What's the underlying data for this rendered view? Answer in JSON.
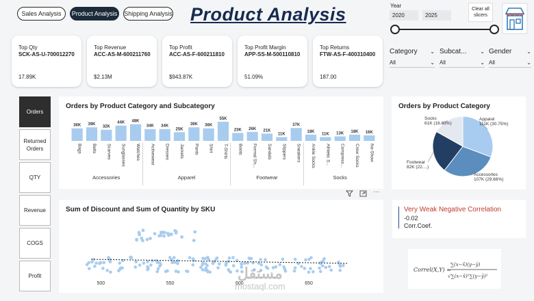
{
  "tabs": [
    {
      "label": "Sales Analysis",
      "active": false
    },
    {
      "label": "Product Analysis",
      "active": true
    },
    {
      "label": "Shipping Analysis",
      "active": false
    }
  ],
  "title": "Product  Analysis",
  "year": {
    "label": "Year",
    "from": "2020",
    "to": "2025"
  },
  "clear_slicers": "Clear all slicers",
  "slicers": [
    {
      "label": "Category",
      "value": "All"
    },
    {
      "label": "Subcat...",
      "value": "All"
    },
    {
      "label": "Gender",
      "value": "All"
    }
  ],
  "kpis": [
    {
      "label": "Top Qty",
      "code": "SCK-AS-U-700012270",
      "value": "17.89K"
    },
    {
      "label": "Top Revenue",
      "code": "ACC-AS-M-600211760",
      "value": "$2.13M"
    },
    {
      "label": "Top Profit",
      "code": "ACC-AS-F-600211810",
      "value": "$943.87K"
    },
    {
      "label": "Top Profit Margin",
      "code": "APP-SS-M-500110810",
      "value": "51.09%"
    },
    {
      "label": "Top Returns",
      "code": "FTW-AS-F-400310400",
      "value": "187.00"
    }
  ],
  "nav": [
    {
      "label": "Orders",
      "active": true
    },
    {
      "label": "Returned Orders",
      "active": false
    },
    {
      "label": "QTY",
      "active": false
    },
    {
      "label": "Revenue",
      "active": false
    },
    {
      "label": "COGS",
      "active": false
    },
    {
      "label": "Profit",
      "active": false
    }
  ],
  "chart_data": [
    {
      "type": "bar",
      "title": "Orders by Product Category and Subcategory",
      "categories": [
        "Bags",
        "Belts",
        "Scarves",
        "Sunglasses",
        "Watches",
        "Activewear",
        "Dresses",
        "Jackets",
        "Pants",
        "Shirt",
        "T-Shirts",
        "Boots",
        "Formal Sh...",
        "Sandals",
        "Slippers",
        "Sneakers",
        "Ankle Socks",
        "Athletic S...",
        "Compress...",
        "Crew Socks",
        "No-Show"
      ],
      "values": [
        36,
        39,
        32,
        44,
        48,
        34,
        34,
        25,
        39,
        36,
        55,
        23,
        26,
        21,
        11,
        37,
        18,
        11,
        13,
        18,
        16
      ],
      "data_labels": [
        "36K",
        "39K",
        "32K",
        "44K",
        "48K",
        "34K",
        "34K",
        "25K",
        "39K",
        "36K",
        "55K",
        "23K",
        "26K",
        "21K",
        "11K",
        "37K",
        "18K",
        "11K",
        "13K",
        "18K",
        "16K"
      ],
      "groups": [
        {
          "name": "Accessories",
          "count": 5
        },
        {
          "name": "Apparel",
          "count": 6
        },
        {
          "name": "Footwear",
          "count": 5
        },
        {
          "name": "Socks",
          "count": 5
        }
      ],
      "color": "#a8ccef"
    },
    {
      "type": "pie",
      "title": "Orders by Product Category",
      "slices": [
        {
          "name": "Apparel",
          "value": 30.75,
          "label": "111K (30.75%)",
          "color": "#a8ccef"
        },
        {
          "name": "Accessories",
          "value": 29.66,
          "label": "107K (29.66%)",
          "color": "#5b8dbe"
        },
        {
          "name": "Footwear",
          "value": 22.76,
          "label": "82K (22....)",
          "color": "#223f63"
        },
        {
          "name": "Socks",
          "value": 16.83,
          "label": "61K (16.83%)",
          "color": "#e4e9ef"
        }
      ]
    },
    {
      "type": "scatter",
      "title": "Sum of Discount and Sum of Quantity by SKU",
      "x_ticks": [
        "500",
        "550",
        "600",
        "650"
      ],
      "xlim": [
        487,
        687
      ],
      "trend": "dotted",
      "color": "#a8ccef"
    }
  ],
  "correlation": {
    "title": "Very Weak Negative Correlation",
    "value": "-0.02",
    "label": "Corr.Coef."
  },
  "formula": {
    "lhs": "Correl(X,Y) =",
    "num": "∑(x−x̄)(y−ȳ)",
    "den": "√∑(x−x̄)²∑(y−ȳ)²"
  },
  "watermark": {
    "arabic": "مستقل",
    "latin": "mostaql.com"
  }
}
